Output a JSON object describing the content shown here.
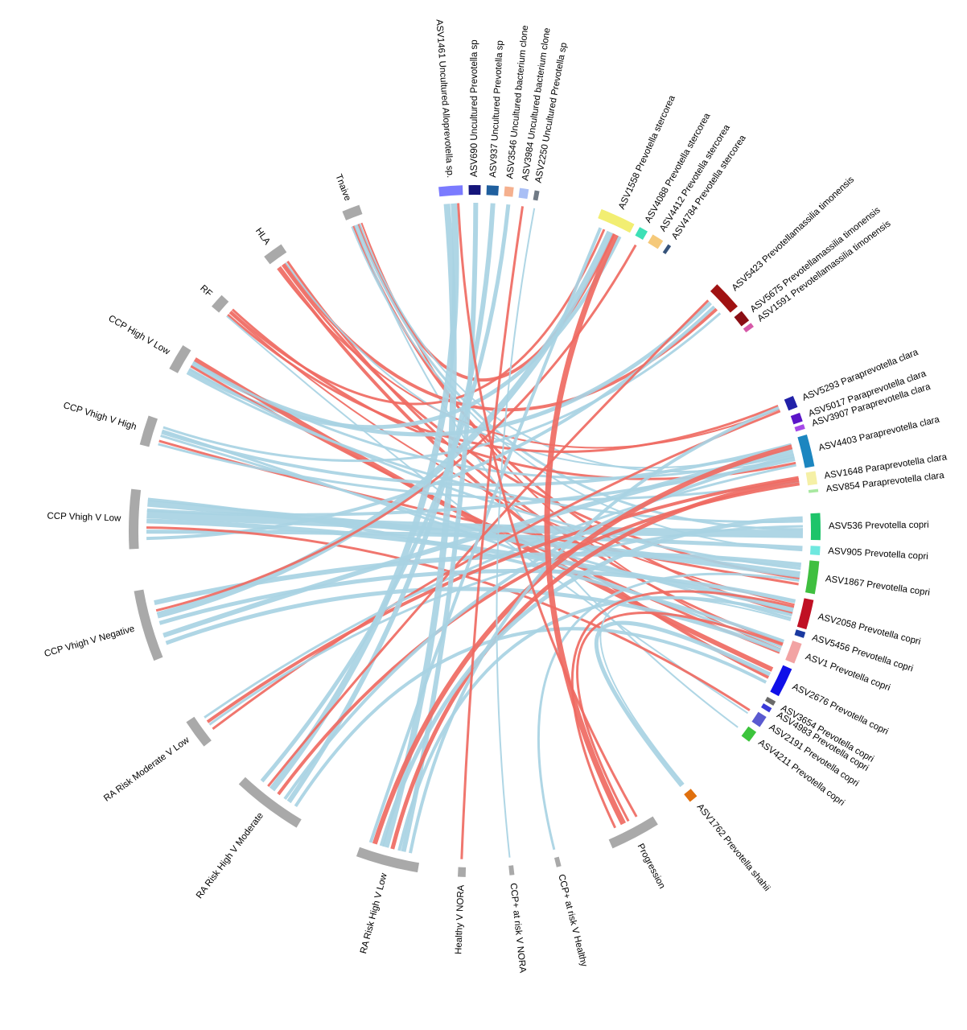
{
  "colors": {
    "positive_link": "#a8d3e3",
    "negative_link": "#ef6a62",
    "group_bar": "#a9a9a9"
  },
  "groups": [
    {
      "id": "tnaive",
      "label": "Tnaive"
    },
    {
      "id": "hla",
      "label": "HLA"
    },
    {
      "id": "rf",
      "label": "RF"
    },
    {
      "id": "ccp_high_v_low",
      "label": "CCP High V Low"
    },
    {
      "id": "ccp_vhigh_v_high",
      "label": "CCP Vhigh V High"
    },
    {
      "id": "ccp_vhigh_v_low",
      "label": "CCP Vhigh V Low"
    },
    {
      "id": "ccp_vhigh_v_negative",
      "label": "CCP Vhigh V Negative"
    },
    {
      "id": "ra_mod_v_low",
      "label": "RA Risk Moderate V Low"
    },
    {
      "id": "ra_high_v_mod",
      "label": "RA Risk High V Moderate"
    },
    {
      "id": "ra_high_v_low",
      "label": "RA Risk High V Low"
    },
    {
      "id": "healthy_v_nora",
      "label": "Healthy V NORA"
    },
    {
      "id": "ccp_risk_v_nora",
      "label": "CCP+ at risk V NORA"
    },
    {
      "id": "ccp_risk_v_healthy",
      "label": "CCP+ at risk V Healthy"
    },
    {
      "id": "progression",
      "label": "Progression"
    }
  ],
  "taxa": [
    {
      "id": "asv1461",
      "label": "ASV1461 Uncultured Alloprevotella sp.",
      "color": "#7b7bff"
    },
    {
      "id": "asv690",
      "label": "ASV690 Uncultured Prevotella sp",
      "color": "#15157a"
    },
    {
      "id": "asv937",
      "label": "ASV937 Uncultured Prevotella sp",
      "color": "#1f5f9e"
    },
    {
      "id": "asv3546",
      "label": "ASV3546 Uncultured bacterium clone",
      "color": "#f5b08e"
    },
    {
      "id": "asv3984",
      "label": "ASV3984 Uncultured bacterium clone",
      "color": "#a9bff5"
    },
    {
      "id": "asv2250",
      "label": "ASV2250 Uncultured Prevotella sp",
      "color": "#707a85"
    },
    {
      "id": "asv1558",
      "label": "ASV1558 Prevotella stercorea",
      "color": "#f2ee72"
    },
    {
      "id": "asv4088",
      "label": "ASV4088 Prevotella stercorea",
      "color": "#3ee0b6"
    },
    {
      "id": "asv4412",
      "label": "ASV4412 Prevotella stercorea",
      "color": "#f5c97a"
    },
    {
      "id": "asv4784",
      "label": "ASV4784 Prevotella stercorea",
      "color": "#36537a"
    },
    {
      "id": "asv5423",
      "label": "ASV5423 Prevotellamassilia timonensis",
      "color": "#a01212"
    },
    {
      "id": "asv5675",
      "label": "ASV5675 Prevotellamassilia timonensis",
      "color": "#8a0e14"
    },
    {
      "id": "asv1591",
      "label": "ASV1591 Prevotellamassilia timonensis",
      "color": "#d659a8"
    },
    {
      "id": "asv5293",
      "label": "ASV5293 Paraprevotella clara",
      "color": "#2121a8"
    },
    {
      "id": "asv5017",
      "label": "ASV5017 Paraprevotella clara",
      "color": "#5a14c8"
    },
    {
      "id": "asv3907",
      "label": "ASV3907 Paraprevotella clara",
      "color": "#a64ae8"
    },
    {
      "id": "asv4403",
      "label": "ASV4403 Paraprevotella clara",
      "color": "#1c86c0"
    },
    {
      "id": "asv1648",
      "label": "ASV1648 Paraprevotella clara",
      "color": "#f5f0a6"
    },
    {
      "id": "asv854",
      "label": "ASV854 Paraprevotella clara",
      "color": "#a8e8a0"
    },
    {
      "id": "asv536",
      "label": "ASV536 Prevotella copri",
      "color": "#1ec46a"
    },
    {
      "id": "asv905",
      "label": "ASV905 Prevotella copri",
      "color": "#6fe8df"
    },
    {
      "id": "asv1867",
      "label": "ASV1867 Prevotella copri",
      "color": "#3fbf3f"
    },
    {
      "id": "asv2058",
      "label": "ASV2058 Prevotella copri",
      "color": "#c01024"
    },
    {
      "id": "asv5456",
      "label": "ASV5456 Prevotella copri",
      "color": "#1a3aa0"
    },
    {
      "id": "asv1",
      "label": "ASV1 Prevotella copri",
      "color": "#f2a3a3"
    },
    {
      "id": "asv2676",
      "label": "ASV2676 Prevotella copri",
      "color": "#1010e8"
    },
    {
      "id": "asv3654",
      "label": "ASV3654 Prevotella copri",
      "color": "#6a6a6a"
    },
    {
      "id": "asv4983",
      "label": "ASV4983 Prevotella copri",
      "color": "#3a3ad8"
    },
    {
      "id": "asv2191",
      "label": "ASV2191 Prevotella copri",
      "color": "#5a5ad0"
    },
    {
      "id": "asv4211",
      "label": "ASV4211 Prevotella copri",
      "color": "#3cc43c"
    },
    {
      "id": "asv1762",
      "label": "ASV1762 Prevotella shahii",
      "color": "#e0700e"
    }
  ]
}
